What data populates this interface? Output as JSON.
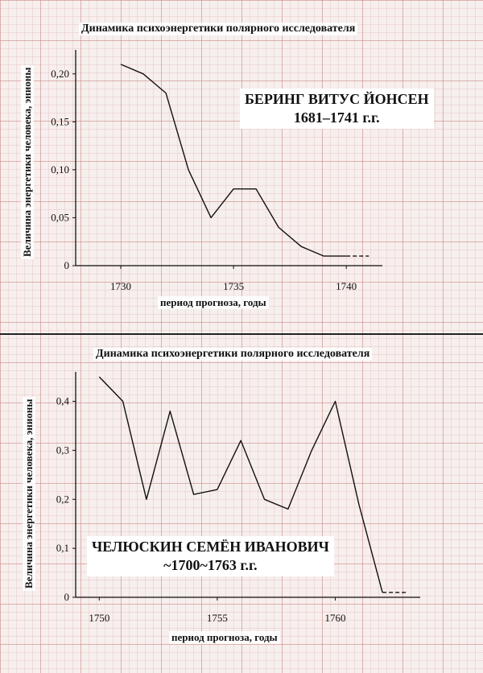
{
  "chart_data": [
    {
      "type": "line",
      "title": "Динамика психоэнергетики полярного исследователя",
      "xlabel": "период прогноза, годы",
      "ylabel": "Величина энергетики человека, энионы",
      "annotation": [
        "БЕРИНГ ВИТУС ЙОНСЕН",
        "1681–1741 г.г."
      ],
      "x_tick_labels": [
        "1730",
        "1735",
        "1740"
      ],
      "y_tick_labels": [
        "0",
        "0,05",
        "0,10",
        "0,15",
        "0,20"
      ],
      "xlim": [
        1728,
        1741.6
      ],
      "ylim": [
        0,
        0.225
      ],
      "grid": true,
      "series": [
        {
          "x": [
            1730,
            1731,
            1732,
            1733,
            1734,
            1735,
            1736,
            1737,
            1738,
            1739,
            1740
          ],
          "values": [
            0.21,
            0.2,
            0.18,
            0.1,
            0.05,
            0.08,
            0.08,
            0.04,
            0.02,
            0.01,
            0.01
          ],
          "style": "solid"
        },
        {
          "x": [
            1740,
            1741
          ],
          "values": [
            0.01,
            0.01
          ],
          "style": "dashed"
        }
      ]
    },
    {
      "type": "line",
      "title": "Динамика психоэнергетики полярного исследователя",
      "xlabel": "период прогноза, годы",
      "ylabel": "Величина энергетики человека, энионы",
      "annotation": [
        "ЧЕЛЮСКИН СЕМЁН ИВАНОВИЧ",
        "~1700~1763 г.г."
      ],
      "x_tick_labels": [
        "1750",
        "1755",
        "1760"
      ],
      "y_tick_labels": [
        "0",
        "0,1",
        "0,2",
        "0,3",
        "0,4"
      ],
      "xlim": [
        1749,
        1763.6
      ],
      "ylim": [
        0,
        0.46
      ],
      "grid": true,
      "series": [
        {
          "x": [
            1750,
            1751,
            1752,
            1753,
            1754,
            1755,
            1756,
            1757,
            1758,
            1759,
            1760,
            1761,
            1762
          ],
          "values": [
            0.45,
            0.4,
            0.2,
            0.38,
            0.21,
            0.22,
            0.32,
            0.2,
            0.18,
            0.3,
            0.4,
            0.19,
            0.01
          ],
          "style": "solid"
        },
        {
          "x": [
            1762,
            1763
          ],
          "values": [
            0.01,
            0.01
          ],
          "style": "dashed"
        }
      ]
    }
  ]
}
